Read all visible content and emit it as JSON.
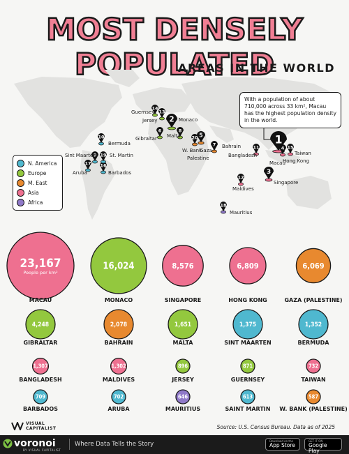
{
  "header": {
    "title": "Most Densely Populated",
    "subtitle": "AREAS IN THE WORLD"
  },
  "callout": "With a population of about 710,000 across 33 km², Macau has the highest population density in the world.",
  "bubble_unit": "People per km²",
  "legend": [
    {
      "label": "N. America",
      "color": "#4fb8cf"
    },
    {
      "label": "Europe",
      "color": "#93c83e"
    },
    {
      "label": "M. East",
      "color": "#e8892f"
    },
    {
      "label": "Asia",
      "color": "#ee7090"
    },
    {
      "label": "Africa",
      "color": "#8f79c8"
    }
  ],
  "map_pins": [
    {
      "rank": "1",
      "label": "Macau"
    },
    {
      "rank": "2",
      "label": "Monaco"
    },
    {
      "rank": "3",
      "label": "Singapore"
    },
    {
      "rank": "4",
      "label": "Hong Kong"
    },
    {
      "rank": "5",
      "label": "Gaza"
    },
    {
      "rank": "6",
      "label": "Gibraltar"
    },
    {
      "rank": "7",
      "label": "Bahrain"
    },
    {
      "rank": "8",
      "label": "Malta"
    },
    {
      "rank": "9",
      "label": "Sint Maarten"
    },
    {
      "rank": "10",
      "label": "Bermuda"
    },
    {
      "rank": "11",
      "label": "Bangladesh"
    },
    {
      "rank": "12",
      "label": "Maldives"
    },
    {
      "rank": "13",
      "label": "Jersey"
    },
    {
      "rank": "14",
      "label": "Guernsey"
    },
    {
      "rank": "15",
      "label": "Taiwan"
    },
    {
      "rank": "16",
      "label": "Barbados"
    },
    {
      "rank": "17",
      "label": "Aruba"
    },
    {
      "rank": "18",
      "label": "Mauritius"
    },
    {
      "rank": "19",
      "label": "St. Martin"
    },
    {
      "rank": "20",
      "label": "W. Bank"
    },
    {
      "rank": "",
      "label": "Palestine"
    }
  ],
  "chart_data": {
    "type": "bubble",
    "title": "Most Densely Populated Areas in the World",
    "unit": "People per km²",
    "categories": [
      "MACAU",
      "MONACO",
      "SINGAPORE",
      "HONG KONG",
      "GAZA (PALESTINE)",
      "GIBRALTAR",
      "BAHRAIN",
      "MALTA",
      "SINT MAARTEN",
      "BERMUDA",
      "BANGLADESH",
      "MALDIVES",
      "JERSEY",
      "GUERNSEY",
      "TAIWAN",
      "BARBADOS",
      "ARUBA",
      "MAURITIUS",
      "SAINT MARTIN",
      "W. BANK (PALESTINE)"
    ],
    "values": [
      23167,
      16024,
      8576,
      6809,
      6069,
      4248,
      2078,
      1651,
      1375,
      1352,
      1307,
      1302,
      896,
      871,
      732,
      709,
      702,
      646,
      613,
      587
    ],
    "labels": [
      "23,167",
      "16,024",
      "8,576",
      "6,809",
      "6,069",
      "4,248",
      "2,078",
      "1,651",
      "1,375",
      "1,352",
      "1,307",
      "1,302",
      "896",
      "871",
      "732",
      "709",
      "702",
      "646",
      "613",
      "587"
    ],
    "regions": [
      "Asia",
      "Europe",
      "Asia",
      "Asia",
      "M. East",
      "Europe",
      "M. East",
      "Europe",
      "N. America",
      "N. America",
      "Asia",
      "Asia",
      "Europe",
      "Europe",
      "Asia",
      "N. America",
      "N. America",
      "Africa",
      "N. America",
      "M. East"
    ]
  },
  "source": "Source: U.S. Census Bureau. Data as of 2025",
  "footer": {
    "logo": "VISUAL CAPITALIST",
    "brand": "voronoi",
    "brand_sub": "BY VISUAL CAPITALIST",
    "tagline": "Where Data Tells the Story",
    "app_store_small": "Download on the",
    "app_store": "App Store",
    "google_play_small": "GET IT ON",
    "google_play": "Google Play"
  },
  "colors": {
    "accent": "#f07f94",
    "dark": "#1a1a1a",
    "background": "#f6f6f4"
  }
}
